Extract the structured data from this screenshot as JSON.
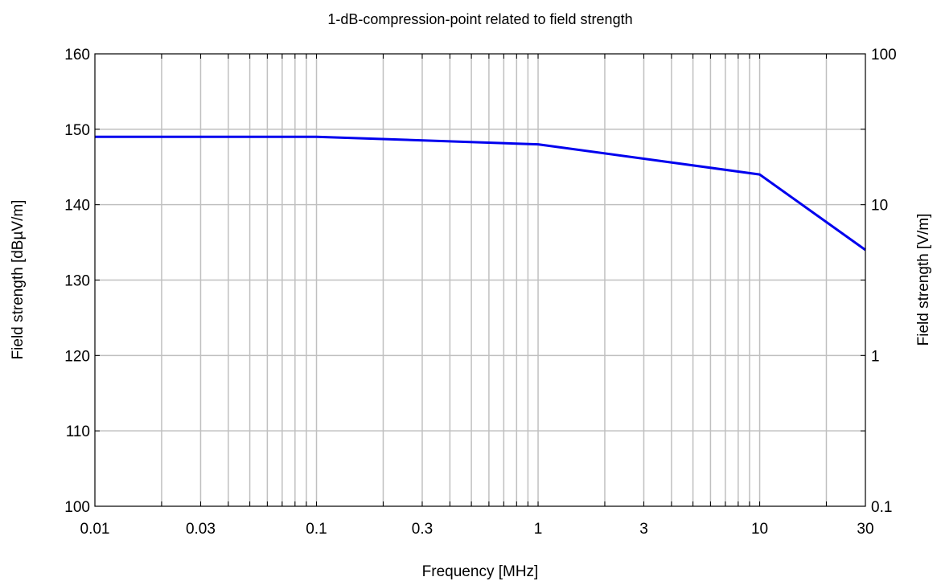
{
  "chart_data": {
    "type": "line",
    "title": "1-dB-compression-point related to field strength",
    "xlabel": "Frequency [MHz]",
    "ylabel": "Field strength [dBµV/m]",
    "y2label": "Field strength [V/m]",
    "x_scale": "log",
    "xlim": [
      0.01,
      30
    ],
    "ylim": [
      100,
      160
    ],
    "y2lim": [
      0.1,
      100
    ],
    "y2_scale": "log",
    "grid": true,
    "x_ticks": [
      0.01,
      0.03,
      0.1,
      0.3,
      1,
      3,
      10,
      30
    ],
    "x_tick_labels": [
      "0.01",
      "0.03",
      "0.1",
      "0.3",
      "1",
      "3",
      "10",
      "30"
    ],
    "y_ticks": [
      100,
      110,
      120,
      130,
      140,
      150,
      160
    ],
    "y_tick_labels": [
      "100",
      "110",
      "120",
      "130",
      "140",
      "150",
      "160"
    ],
    "y2_ticks": [
      0.1,
      1,
      10,
      100
    ],
    "y2_tick_labels": [
      "0.1",
      "1",
      "10",
      "100"
    ],
    "series": [
      {
        "color": "#0000ee",
        "x": [
          0.01,
          0.1,
          1,
          10,
          30
        ],
        "y": [
          149,
          149,
          148,
          144,
          134
        ]
      }
    ]
  }
}
